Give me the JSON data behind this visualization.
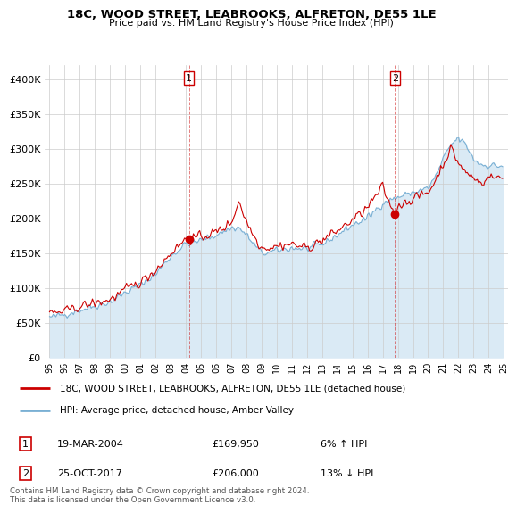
{
  "title": "18C, WOOD STREET, LEABROOKS, ALFRETON, DE55 1LE",
  "subtitle": "Price paid vs. HM Land Registry's House Price Index (HPI)",
  "legend_label_red": "18C, WOOD STREET, LEABROOKS, ALFRETON, DE55 1LE (detached house)",
  "legend_label_blue": "HPI: Average price, detached house, Amber Valley",
  "footnote": "Contains HM Land Registry data © Crown copyright and database right 2024.\nThis data is licensed under the Open Government Licence v3.0.",
  "point1_label": "1",
  "point1_date": "19-MAR-2004",
  "point1_price": "£169,950",
  "point1_hpi": "6% ↑ HPI",
  "point2_label": "2",
  "point2_date": "25-OCT-2017",
  "point2_price": "£206,000",
  "point2_hpi": "13% ↓ HPI",
  "red_color": "#cc0000",
  "blue_color": "#7ab0d4",
  "blue_fill": "#daeaf5",
  "grid_color": "#cccccc",
  "bg_color": "#ffffff",
  "ylim": [
    0,
    420000
  ],
  "yticks": [
    0,
    50000,
    100000,
    150000,
    200000,
    250000,
    300000,
    350000,
    400000
  ],
  "ytick_labels": [
    "£0",
    "£50K",
    "£100K",
    "£150K",
    "£200K",
    "£250K",
    "£300K",
    "£350K",
    "£400K"
  ],
  "point1_x": 2004.21,
  "point1_y": 169950,
  "point2_x": 2017.81,
  "point2_y": 206000,
  "xlim": [
    1994.7,
    2025.3
  ]
}
